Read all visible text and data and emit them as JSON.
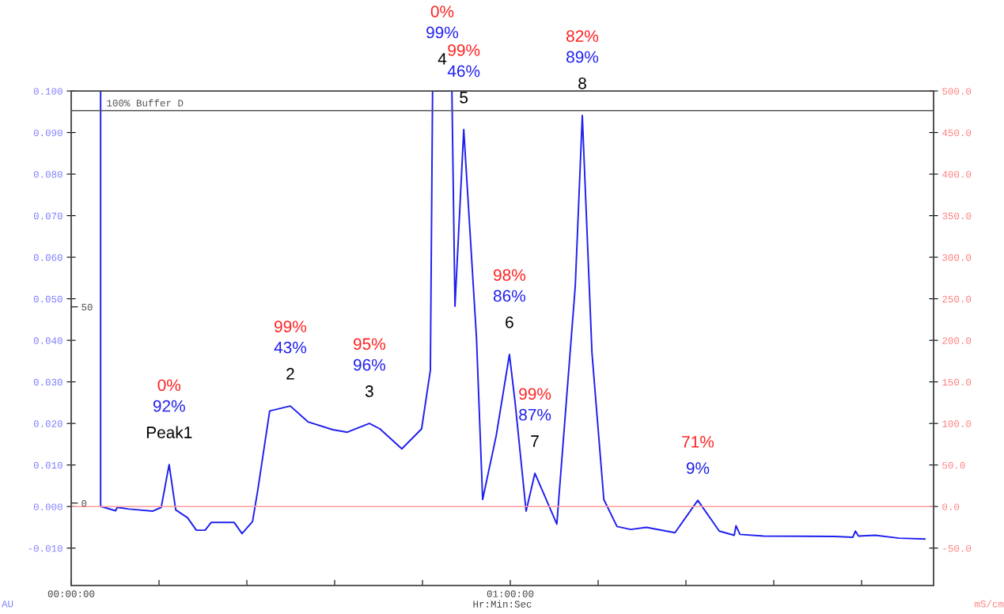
{
  "chart_data": {
    "type": "line",
    "xlabel": "Hr:Min:Sec",
    "ylabel": "AU",
    "y2label": "mS/cm",
    "xlim": [
      0,
      1.964
    ],
    "xticks": [
      {
        "value": 0,
        "label": "00:00:00"
      },
      {
        "value": 0.2,
        "label": null
      },
      {
        "value": 0.4,
        "label": null
      },
      {
        "value": 0.6,
        "label": null
      },
      {
        "value": 0.8,
        "label": null
      },
      {
        "value": 1,
        "label": "01:00:00"
      },
      {
        "value": 1.2,
        "label": null
      },
      {
        "value": 1.4,
        "label": null
      },
      {
        "value": 1.6,
        "label": null
      },
      {
        "value": 1.8,
        "label": null
      }
    ],
    "ylim": [
      -0.019,
      0.1
    ],
    "yticks": [
      {
        "value": -0.01,
        "label": "-0.010"
      },
      {
        "value": 0,
        "label": "0.000"
      },
      {
        "value": 0.01,
        "label": "0.010"
      },
      {
        "value": 0.02,
        "label": "0.020"
      },
      {
        "value": 0.03,
        "label": "0.030"
      },
      {
        "value": 0.04,
        "label": "0.040"
      },
      {
        "value": 0.05,
        "label": "0.050"
      },
      {
        "value": 0.06,
        "label": "0.060"
      },
      {
        "value": 0.07,
        "label": "0.070"
      },
      {
        "value": 0.08,
        "label": "0.080"
      },
      {
        "value": 0.09,
        "label": "0.090"
      },
      {
        "value": 0.1,
        "label": "0.100"
      }
    ],
    "y2lim": [
      -95,
      500
    ],
    "y2ticks": [
      {
        "value": -50,
        "label": "-50.0"
      },
      {
        "value": 0,
        "label": "0.0"
      },
      {
        "value": 50,
        "label": "50.0"
      },
      {
        "value": 100,
        "label": "100.0"
      },
      {
        "value": 150,
        "label": "150.0"
      },
      {
        "value": 200,
        "label": "200.0"
      },
      {
        "value": 250,
        "label": "250.0"
      },
      {
        "value": 300,
        "label": "300.0"
      },
      {
        "value": 350,
        "label": "350.0"
      },
      {
        "value": 400,
        "label": "400.0"
      },
      {
        "value": 450,
        "label": "450.0"
      },
      {
        "value": 500,
        "label": "500.0"
      }
    ],
    "y3lim": [
      -21,
      105
    ],
    "y3ticks": [
      0,
      50
    ],
    "grid": false,
    "line_style": "solid",
    "series": [
      {
        "color": "#1f1fef",
        "x": [
          0.067,
          0.067,
          0.069,
          0.101,
          0.105,
          0.132,
          0.186,
          0.205,
          0.223,
          0.238,
          0.265,
          0.285,
          0.305,
          0.319,
          0.371,
          0.389,
          0.413,
          0.425,
          0.452,
          0.499,
          0.539,
          0.595,
          0.629,
          0.679,
          0.703,
          0.753,
          0.798,
          0.818,
          0.823,
          0.867,
          0.874,
          0.894,
          0.923,
          0.937,
          0.968,
          0.998,
          1.011,
          1.036,
          1.056,
          1.106,
          1.148,
          1.164,
          1.186,
          1.213,
          1.243,
          1.274,
          1.31,
          1.375,
          1.427,
          1.476,
          1.51,
          1.514,
          1.523,
          1.577,
          1.739,
          1.78,
          1.786,
          1.793,
          1.831,
          1.885,
          1.944
        ],
        "values": [
          0.1,
          0.0,
          0.0,
          -0.001,
          -0.0002,
          -0.0006,
          -0.0011,
          -0.0002,
          0.0101,
          -0.0008,
          -0.0027,
          -0.0057,
          -0.0057,
          -0.0038,
          -0.0038,
          -0.0065,
          -0.0036,
          0.004,
          0.023,
          0.0242,
          0.0204,
          0.0185,
          0.0179,
          0.02,
          0.0187,
          0.0139,
          0.0187,
          0.0328,
          0.1,
          0.1,
          0.0482,
          0.0907,
          0.0406,
          0.0017,
          0.0171,
          0.0366,
          0.025,
          -0.0011,
          0.008,
          -0.0042,
          0.0531,
          0.0941,
          0.037,
          0.0017,
          -0.0048,
          -0.0055,
          -0.005,
          -0.0063,
          0.0015,
          -0.0059,
          -0.0069,
          -0.0046,
          -0.0067,
          -0.0071,
          -0.0072,
          -0.0074,
          -0.0059,
          -0.0071,
          -0.0069,
          -0.0076,
          -0.0078
        ]
      }
    ],
    "ref_lines": [
      {
        "axis": "y2",
        "value": 0,
        "color": "#ff9a9a"
      },
      {
        "axis": "y3",
        "value": 100,
        "label": "100% Buffer D",
        "color": "#555555"
      }
    ],
    "annotations": [
      "0%",
      "92%",
      {
        "text": "Peak1",
        "x": 0.223,
        "y": 0.0101
      },
      "99%",
      "43%",
      {
        "text": "2",
        "x": 0.499,
        "y": 0.0242
      },
      "95%",
      "96%",
      {
        "text": "3",
        "x": 0.679,
        "y": 0.02
      },
      "0%",
      "99%",
      {
        "text": "4",
        "x": 0.845,
        "y": 0.1
      },
      "99%",
      "46%",
      {
        "text": "5",
        "x": 0.894,
        "y": 0.0907
      },
      "98%",
      "86%",
      {
        "text": "6",
        "x": 0.998,
        "y": 0.0366
      },
      "99%",
      "87%",
      {
        "text": "7",
        "x": 1.056,
        "y": 0.008
      },
      "82%",
      "89%",
      {
        "text": "8",
        "x": 1.164,
        "y": 0.0941
      },
      "71%",
      {
        "text": "9%",
        "x": 1.427,
        "y": 0.0015
      }
    ]
  }
}
